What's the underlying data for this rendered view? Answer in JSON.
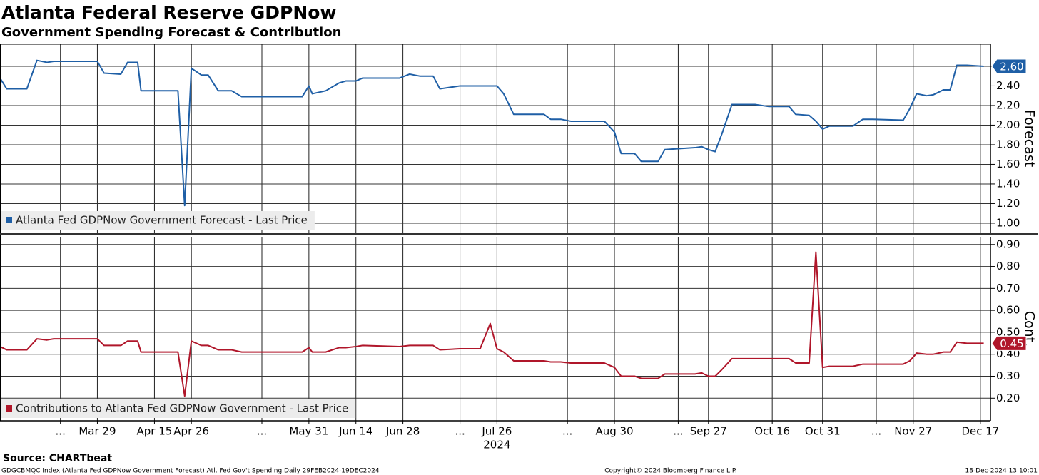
{
  "title": "Atlanta Federal Reserve GDPNow",
  "subtitle": "Government Spending Forecast & Contribution",
  "source": "Source: CHARTbeat",
  "footer": [
    "GDGCBMQC Index (Atlanta Fed GDPNow Government Forecast) Atl. Fed Gov't Spending  Daily 29FEB2024-19DEC2024",
    "Copyright© 2024 Bloomberg Finance L.P.",
    "18-Dec-2024 13:10:01"
  ],
  "chart_data": [
    {
      "type": "line",
      "y_label": "Forecast",
      "grid": true,
      "xlim": [
        "2024-02-29",
        "2024-12-20"
      ],
      "x": [
        "2024-02-29",
        "2024-03-02",
        "2024-03-08",
        "2024-03-11",
        "2024-03-14",
        "2024-03-16",
        "2024-03-29",
        "2024-03-31",
        "2024-04-05",
        "2024-04-07",
        "2024-04-10",
        "2024-04-11",
        "2024-04-22",
        "2024-04-24",
        "2024-04-26",
        "2024-04-29",
        "2024-05-01",
        "2024-05-04",
        "2024-05-08",
        "2024-05-11",
        "2024-05-29",
        "2024-05-31",
        "2024-06-01",
        "2024-06-05",
        "2024-06-09",
        "2024-06-11",
        "2024-06-14",
        "2024-06-16",
        "2024-06-27",
        "2024-06-30",
        "2024-07-03",
        "2024-07-07",
        "2024-07-09",
        "2024-07-15",
        "2024-07-21",
        "2024-07-24",
        "2024-07-26",
        "2024-07-28",
        "2024-07-31",
        "2024-08-09",
        "2024-08-11",
        "2024-08-14",
        "2024-08-17",
        "2024-08-27",
        "2024-08-30",
        "2024-09-01",
        "2024-09-05",
        "2024-09-07",
        "2024-09-12",
        "2024-09-14",
        "2024-09-23",
        "2024-09-25",
        "2024-09-27",
        "2024-09-29",
        "2024-10-01",
        "2024-10-04",
        "2024-10-11",
        "2024-10-13",
        "2024-10-15",
        "2024-10-21",
        "2024-10-23",
        "2024-10-27",
        "2024-10-29",
        "2024-10-31",
        "2024-11-02",
        "2024-11-09",
        "2024-11-12",
        "2024-11-15",
        "2024-11-24",
        "2024-11-26",
        "2024-11-28",
        "2024-12-01",
        "2024-12-03",
        "2024-12-06",
        "2024-12-08",
        "2024-12-10",
        "2024-12-13",
        "2024-12-18"
      ],
      "series": [
        {
          "name": "Atlanta Fed GDPNow Government Forecast - Last Price",
          "color": "#1f5fa6",
          "last_label": "2.60",
          "values": [
            2.48,
            2.37,
            2.37,
            2.66,
            2.64,
            2.65,
            2.65,
            2.53,
            2.52,
            2.64,
            2.64,
            2.35,
            2.35,
            1.18,
            2.58,
            2.51,
            2.51,
            2.35,
            2.35,
            2.29,
            2.29,
            2.4,
            2.32,
            2.35,
            2.43,
            2.45,
            2.45,
            2.48,
            2.48,
            2.52,
            2.5,
            2.5,
            2.37,
            2.4,
            2.4,
            2.4,
            2.4,
            2.32,
            2.11,
            2.11,
            2.06,
            2.06,
            2.04,
            2.04,
            1.93,
            1.71,
            1.71,
            1.63,
            1.63,
            1.75,
            1.77,
            1.78,
            1.75,
            1.73,
            1.91,
            2.21,
            2.21,
            2.2,
            2.19,
            2.19,
            2.11,
            2.1,
            2.04,
            1.96,
            1.99,
            1.99,
            2.06,
            2.06,
            2.05,
            2.17,
            2.32,
            2.3,
            2.31,
            2.36,
            2.36,
            2.61,
            2.61,
            2.6
          ]
        }
      ],
      "ylim": [
        0.905,
        2.825
      ],
      "yticks": [
        {
          "value": 1.0,
          "label": "1.00"
        },
        {
          "value": 1.2,
          "label": "1.20"
        },
        {
          "value": 1.4,
          "label": "1.40"
        },
        {
          "value": 1.6,
          "label": "1.60"
        },
        {
          "value": 1.8,
          "label": "1.80"
        },
        {
          "value": 2.0,
          "label": "2.00"
        },
        {
          "value": 2.2,
          "label": "2.20"
        },
        {
          "value": 2.4,
          "label": "2.40"
        },
        {
          "value": 2.6,
          "label": "2.60"
        }
      ]
    },
    {
      "type": "line",
      "y_label": "Cont.",
      "grid": true,
      "xlim": [
        "2024-02-29",
        "2024-12-20"
      ],
      "x": [
        "2024-02-29",
        "2024-03-02",
        "2024-03-08",
        "2024-03-11",
        "2024-03-14",
        "2024-03-16",
        "2024-03-29",
        "2024-03-31",
        "2024-04-05",
        "2024-04-07",
        "2024-04-10",
        "2024-04-11",
        "2024-04-22",
        "2024-04-24",
        "2024-04-26",
        "2024-04-29",
        "2024-05-01",
        "2024-05-04",
        "2024-05-08",
        "2024-05-11",
        "2024-05-29",
        "2024-05-31",
        "2024-06-01",
        "2024-06-05",
        "2024-06-09",
        "2024-06-11",
        "2024-06-14",
        "2024-06-16",
        "2024-06-27",
        "2024-06-30",
        "2024-07-03",
        "2024-07-07",
        "2024-07-09",
        "2024-07-15",
        "2024-07-21",
        "2024-07-24",
        "2024-07-26",
        "2024-07-28",
        "2024-07-31",
        "2024-08-09",
        "2024-08-11",
        "2024-08-14",
        "2024-08-17",
        "2024-08-27",
        "2024-08-30",
        "2024-09-01",
        "2024-09-05",
        "2024-09-07",
        "2024-09-12",
        "2024-09-14",
        "2024-09-23",
        "2024-09-25",
        "2024-09-27",
        "2024-09-29",
        "2024-10-01",
        "2024-10-04",
        "2024-10-11",
        "2024-10-13",
        "2024-10-15",
        "2024-10-21",
        "2024-10-23",
        "2024-10-27",
        "2024-10-29",
        "2024-10-31",
        "2024-11-02",
        "2024-11-09",
        "2024-11-12",
        "2024-11-15",
        "2024-11-24",
        "2024-11-26",
        "2024-11-28",
        "2024-12-01",
        "2024-12-03",
        "2024-12-06",
        "2024-12-08",
        "2024-12-10",
        "2024-12-13",
        "2024-12-18"
      ],
      "series": [
        {
          "name": "Contributions to Atlanta Fed GDPNow Government - Last Price",
          "color": "#b0162a",
          "last_label": "0.45",
          "values": [
            0.435,
            0.42,
            0.42,
            0.47,
            0.465,
            0.47,
            0.47,
            0.44,
            0.44,
            0.46,
            0.46,
            0.41,
            0.41,
            0.21,
            0.46,
            0.44,
            0.44,
            0.42,
            0.42,
            0.41,
            0.41,
            0.43,
            0.41,
            0.41,
            0.43,
            0.43,
            0.435,
            0.44,
            0.435,
            0.44,
            0.44,
            0.44,
            0.42,
            0.425,
            0.425,
            0.54,
            0.425,
            0.41,
            0.37,
            0.37,
            0.365,
            0.365,
            0.36,
            0.36,
            0.34,
            0.3,
            0.3,
            0.29,
            0.29,
            0.31,
            0.31,
            0.315,
            0.3,
            0.3,
            0.33,
            0.38,
            0.38,
            0.38,
            0.38,
            0.38,
            0.36,
            0.36,
            0.865,
            0.34,
            0.345,
            0.345,
            0.355,
            0.355,
            0.355,
            0.37,
            0.405,
            0.4,
            0.4,
            0.41,
            0.41,
            0.455,
            0.45,
            0.45
          ]
        }
      ],
      "ylim": [
        0.097,
        0.935
      ],
      "yticks": [
        {
          "value": 0.2,
          "label": "0.20"
        },
        {
          "value": 0.3,
          "label": "0.30"
        },
        {
          "value": 0.4,
          "label": "0.40"
        },
        {
          "value": 0.5,
          "label": "0.50"
        },
        {
          "value": 0.6,
          "label": "0.60"
        },
        {
          "value": 0.7,
          "label": "0.70"
        },
        {
          "value": 0.8,
          "label": "0.80"
        },
        {
          "value": 0.9,
          "label": "0.90"
        }
      ],
      "xticks": [
        {
          "value": "2024-03-18",
          "label": "..."
        },
        {
          "value": "2024-03-29",
          "label": "Mar 29"
        },
        {
          "value": "2024-04-15",
          "label": "Apr 15"
        },
        {
          "value": "2024-04-26",
          "label": "Apr 26"
        },
        {
          "value": "2024-05-17",
          "label": "..."
        },
        {
          "value": "2024-05-31",
          "label": "May 31"
        },
        {
          "value": "2024-06-14",
          "label": "Jun 14"
        },
        {
          "value": "2024-06-28",
          "label": "Jun 28"
        },
        {
          "value": "2024-07-15",
          "label": "..."
        },
        {
          "value": "2024-07-26",
          "label": "Jul 26"
        },
        {
          "value": "2024-08-16",
          "label": "..."
        },
        {
          "value": "2024-08-30",
          "label": "Aug 30"
        },
        {
          "value": "2024-09-18",
          "label": "..."
        },
        {
          "value": "2024-09-27",
          "label": "Sep 27"
        },
        {
          "value": "2024-10-16",
          "label": "Oct 16"
        },
        {
          "value": "2024-10-31",
          "label": "Oct 31"
        },
        {
          "value": "2024-11-16",
          "label": "..."
        },
        {
          "value": "2024-11-27",
          "label": "Nov 27"
        },
        {
          "value": "2024-12-17",
          "label": "Dec 17"
        }
      ],
      "x_sublabel": {
        "value": "2024-07-26",
        "label": "2024"
      }
    }
  ]
}
